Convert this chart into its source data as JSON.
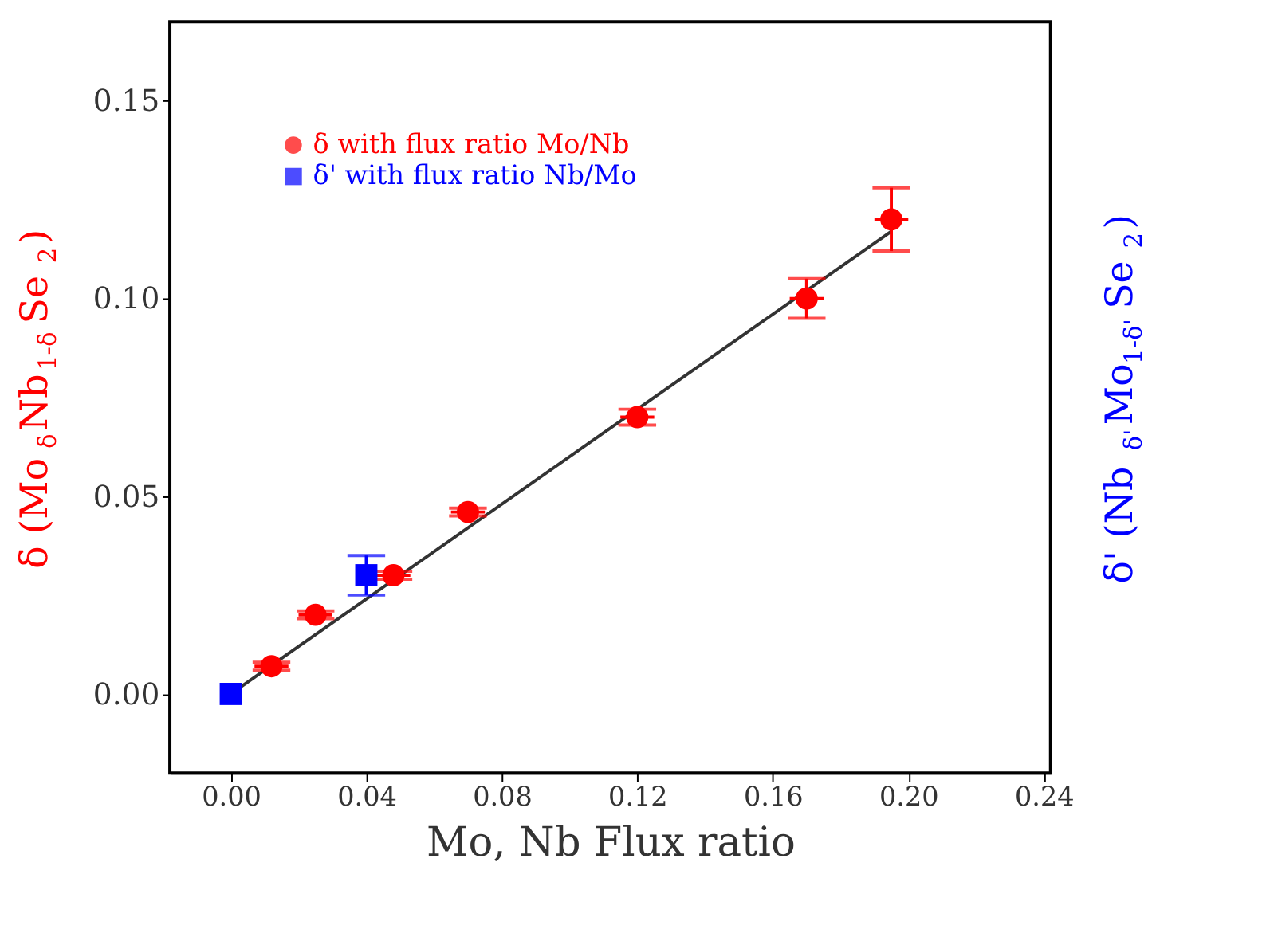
{
  "chart_data": {
    "type": "scatter",
    "xlabel": "Mo, Nb Flux ratio",
    "ylabel": "δ (Mo$_{δ}$Nb$_{1-δ}$Se$_{2}$)",
    "y2label": "δ' (Nb$_{δ'}$Mo$_{1-δ'}$Se$_{2}$)",
    "xlim": [
      -0.018,
      0.242
    ],
    "ylim": [
      -0.02,
      0.17
    ],
    "xticks": [
      {
        "value": 0.0,
        "label": "0.00"
      },
      0.04,
      0.08,
      0.12,
      0.16,
      {
        "value": 0.2,
        "label": "0.20"
      },
      0.24
    ],
    "yticks": [
      {
        "value": 0.0,
        "label": "0.00"
      },
      0.05,
      {
        "value": 0.1,
        "label": "0.10"
      },
      0.15
    ],
    "series": [
      {
        "name": "δ with flux ratio Mo/Nb",
        "color": "#ff0000",
        "marker": "circle",
        "x": [
          0.012,
          0.025,
          0.048,
          0.07,
          0.12,
          0.17,
          0.195
        ],
        "values": [
          0.007,
          0.02,
          0.03,
          0.046,
          0.07,
          0.1,
          0.12
        ],
        "errors": [
          0.001,
          0.001,
          0.001,
          0.001,
          0.002,
          0.005,
          0.008
        ],
        "xerrors": [
          0.005,
          0.005,
          0.005,
          0.005,
          0.005,
          0.005,
          0.005
        ]
      },
      {
        "name": "δ' with flux ratio Nb/Mo",
        "color": "#0000ff",
        "marker": "square",
        "x": [
          0.0,
          0.04
        ],
        "values": [
          0.0,
          0.03
        ],
        "errors": [
          null,
          0.005
        ],
        "xerrors": [
          null,
          0.003
        ]
      },
      {
        "type": "line",
        "color": "#333333",
        "x": [
          0.0,
          0.195
        ],
        "values": [
          0.0,
          0.117
        ]
      }
    ],
    "legend": "top left",
    "grid": false
  }
}
